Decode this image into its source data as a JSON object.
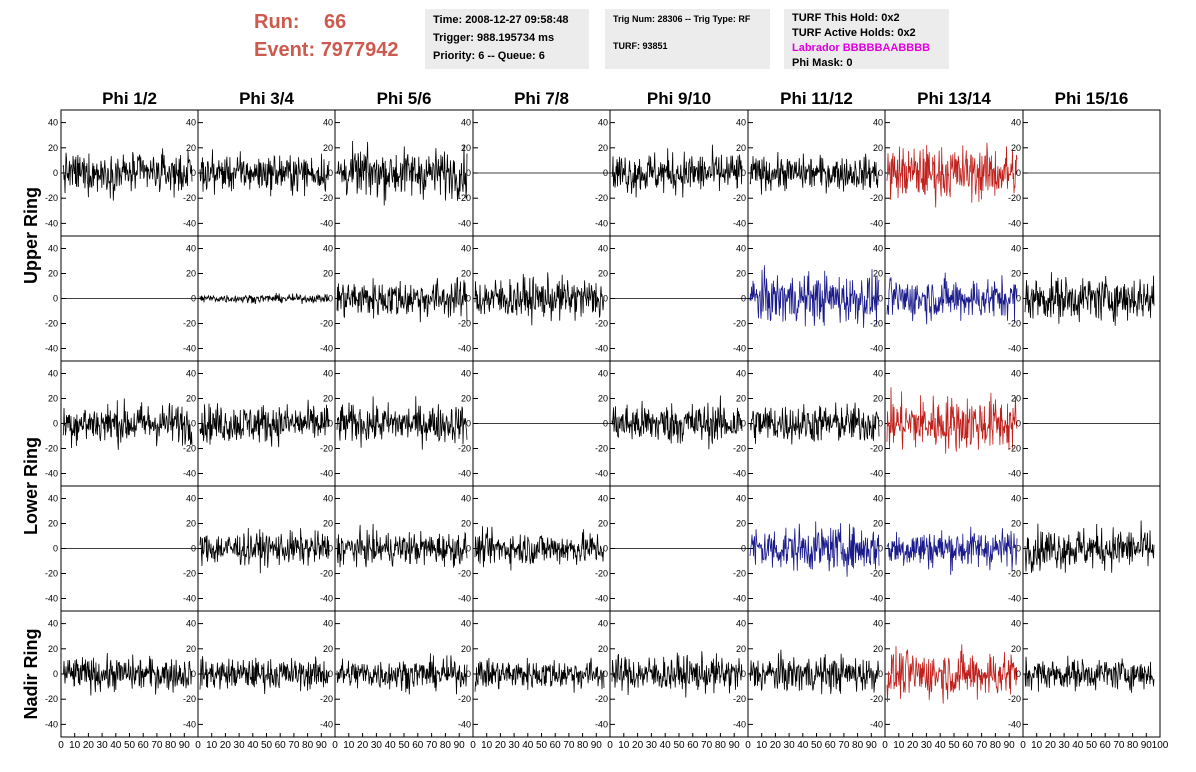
{
  "header": {
    "run_label": "Run:",
    "run_value": "66",
    "event_label": "Event:",
    "event_value": "7977942",
    "time": "Time: 2008-12-27 09:58:48",
    "trigger": "Trigger: 988.195734 ms",
    "priority": "Priority: 6 -- Queue: 6",
    "trig_num": "Trig Num: 28306 -- Trig Type: RF",
    "turf": "TURF: 93851",
    "turf_this_hold": "TURF This Hold: 0x2",
    "turf_active_holds": "TURF Active Holds: 0x2",
    "labrador": "Labrador BBBBBAABBBB",
    "phi_mask": "Phi Mask: 0"
  },
  "ring_labels": [
    "Upper Ring",
    "Lower Ring",
    "Nadir Ring"
  ],
  "colors": {
    "normal": "#000000",
    "red": "#c0201c",
    "blue": "#1a1a8c",
    "run_text": "#cc5a4e",
    "labrador": "#e000e0"
  },
  "chart_data": {
    "type": "line",
    "columns": [
      "Phi 1/2",
      "Phi 3/4",
      "Phi 5/6",
      "Phi 7/8",
      "Phi 9/10",
      "Phi 11/12",
      "Phi 13/14",
      "Phi 15/16"
    ],
    "row_groups": [
      "Upper Ring",
      "Upper Ring",
      "Lower Ring",
      "Lower Ring",
      "Nadir Ring"
    ],
    "ylim": [
      -50,
      50
    ],
    "yticks": [
      -40,
      -20,
      0,
      20,
      40
    ],
    "xlim": [
      0,
      100
    ],
    "xticks": [
      0,
      10,
      20,
      30,
      40,
      50,
      60,
      70,
      80,
      90,
      100
    ],
    "xtick_labels": [
      "0",
      "10",
      "20",
      "30",
      "40",
      "50",
      "60",
      "70",
      "80",
      "90",
      "100"
    ],
    "waveforms": [
      [
        {
          "amp": 14,
          "color": "normal"
        },
        {
          "amp": 13,
          "color": "normal"
        },
        {
          "amp": 17,
          "color": "normal"
        },
        {
          "amp": 0,
          "color": "normal"
        },
        {
          "amp": 15,
          "color": "normal"
        },
        {
          "amp": 12,
          "color": "normal"
        },
        {
          "amp": 19,
          "color": "red"
        },
        {
          "amp": 0,
          "color": "normal"
        }
      ],
      [
        {
          "amp": 0,
          "color": "normal"
        },
        {
          "amp": 3,
          "color": "normal"
        },
        {
          "amp": 14,
          "color": "normal"
        },
        {
          "amp": 15,
          "color": "normal"
        },
        {
          "amp": 0,
          "color": "normal"
        },
        {
          "amp": 18,
          "color": "blue"
        },
        {
          "amp": 15,
          "color": "blue"
        },
        {
          "amp": 16,
          "color": "normal"
        }
      ],
      [
        {
          "amp": 15,
          "color": "normal"
        },
        {
          "amp": 14,
          "color": "normal"
        },
        {
          "amp": 14,
          "color": "normal"
        },
        {
          "amp": 0,
          "color": "normal"
        },
        {
          "amp": 15,
          "color": "normal"
        },
        {
          "amp": 14,
          "color": "normal"
        },
        {
          "amp": 20,
          "color": "red"
        },
        {
          "amp": 0,
          "color": "normal"
        }
      ],
      [
        {
          "amp": 0,
          "color": "normal"
        },
        {
          "amp": 12,
          "color": "normal"
        },
        {
          "amp": 12,
          "color": "normal"
        },
        {
          "amp": 12,
          "color": "normal"
        },
        {
          "amp": 0,
          "color": "normal"
        },
        {
          "amp": 16,
          "color": "blue"
        },
        {
          "amp": 14,
          "color": "blue"
        },
        {
          "amp": 15,
          "color": "normal"
        }
      ],
      [
        {
          "amp": 12,
          "color": "normal"
        },
        {
          "amp": 11,
          "color": "normal"
        },
        {
          "amp": 11,
          "color": "normal"
        },
        {
          "amp": 11,
          "color": "normal"
        },
        {
          "amp": 13,
          "color": "normal"
        },
        {
          "amp": 13,
          "color": "normal"
        },
        {
          "amp": 17,
          "color": "red"
        },
        {
          "amp": 11,
          "color": "normal"
        }
      ]
    ]
  }
}
